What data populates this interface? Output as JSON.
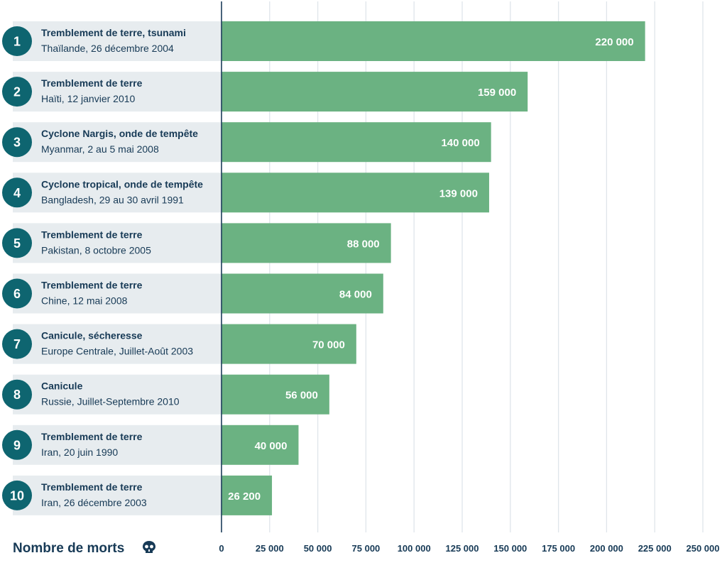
{
  "chart_data": {
    "type": "bar",
    "orientation": "horizontal",
    "xlabel": "Nombre de morts",
    "xlabel_icon": "skull-icon",
    "xlim": [
      0,
      250000
    ],
    "xticks": [
      0,
      25000,
      50000,
      75000,
      100000,
      125000,
      150000,
      175000,
      200000,
      225000,
      250000
    ],
    "xtick_labels": [
      "0",
      "25 000",
      "50 000",
      "75 000",
      "100 000",
      "125 000",
      "150 000",
      "175 000",
      "200 000",
      "225 000",
      "250 000"
    ],
    "grid": true,
    "colors": {
      "bar": "#6bb282",
      "badge": "#0e6570",
      "label_background": "#e7ecef",
      "text": "#173a56",
      "axis": "#1c3d5a",
      "grid": "#dfe5ea"
    },
    "rows": [
      {
        "rank": "1",
        "title": "Tremblement de terre, tsunami",
        "subtitle": "Thaïlande, 26 décembre 2004",
        "value": 220000,
        "value_label": "220 000"
      },
      {
        "rank": "2",
        "title": "Tremblement de terre",
        "subtitle": "Haïti, 12 janvier 2010",
        "value": 159000,
        "value_label": "159 000"
      },
      {
        "rank": "3",
        "title": "Cyclone Nargis, onde de tempête",
        "subtitle": "Myanmar, 2 au 5 mai 2008",
        "value": 140000,
        "value_label": "140 000"
      },
      {
        "rank": "4",
        "title": "Cyclone tropical, onde de tempête",
        "subtitle": "Bangladesh, 29 au 30 avril 1991",
        "value": 139000,
        "value_label": "139 000"
      },
      {
        "rank": "5",
        "title": "Tremblement de terre",
        "subtitle": "Pakistan, 8 octobre 2005",
        "value": 88000,
        "value_label": "88 000"
      },
      {
        "rank": "6",
        "title": "Tremblement de terre",
        "subtitle": "Chine, 12 mai 2008",
        "value": 84000,
        "value_label": "84 000"
      },
      {
        "rank": "7",
        "title": "Canicule, sécheresse",
        "subtitle": "Europe Centrale, Juillet-Août 2003",
        "value": 70000,
        "value_label": "70 000"
      },
      {
        "rank": "8",
        "title": "Canicule",
        "subtitle": "Russie, Juillet-Septembre 2010",
        "value": 56000,
        "value_label": "56 000"
      },
      {
        "rank": "9",
        "title": "Tremblement de terre",
        "subtitle": "Iran, 20 juin 1990",
        "value": 40000,
        "value_label": "40 000"
      },
      {
        "rank": "10",
        "title": "Tremblement de terre",
        "subtitle": "Iran, 26 décembre 2003",
        "value": 26200,
        "value_label": "26 200"
      }
    ]
  }
}
